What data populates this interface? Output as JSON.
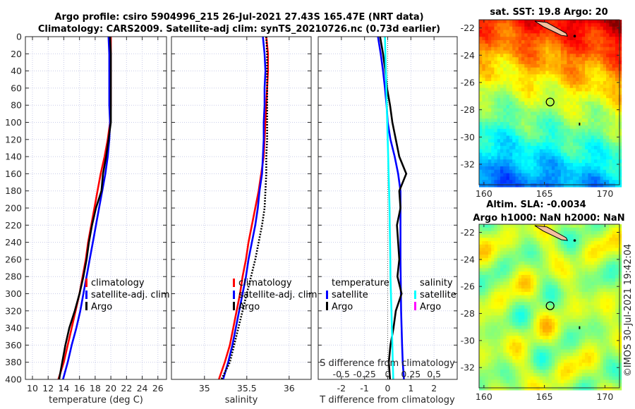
{
  "figure_title": {
    "line1": "Argo profile: csiro 5904996_215 26-Jul-2021 27.43S 165.47E (NRT data)",
    "line2": "Climatology: CARS2009. Satellite-adj clim: synTS_20210726.nc (0.73d earlier)"
  },
  "copyright": "©IMOS 30-Jul-2021 19:42:04",
  "colors": {
    "climatology": "#ff0000",
    "satellite": "#0000ff",
    "argo": "#000000",
    "sal_satellite": "#00ffff",
    "sal_argo": "#ff00ff"
  },
  "chart_data": [
    {
      "type": "line",
      "name": "temperature",
      "xlabel": "temperature (deg C)",
      "ylabel": "",
      "xlim": [
        9.1,
        27.1
      ],
      "ylim": [
        400,
        0
      ],
      "xticks": [
        "10",
        "12",
        "14",
        "16",
        "18",
        "20",
        "22",
        "24",
        "26"
      ],
      "yticks": [
        "0",
        "20",
        "40",
        "60",
        "80",
        "100",
        "120",
        "140",
        "160",
        "180",
        "200",
        "220",
        "240",
        "260",
        "280",
        "300",
        "320",
        "340",
        "360",
        "380",
        "400"
      ],
      "grid": true,
      "legend": [
        "climatology",
        "satellite-adj. clim",
        "Argo"
      ],
      "depth": [
        0,
        20,
        40,
        60,
        80,
        100,
        120,
        140,
        160,
        180,
        200,
        220,
        240,
        260,
        280,
        300,
        320,
        340,
        360,
        380,
        400
      ],
      "series": [
        {
          "name": "climatology",
          "values": [
            20.0,
            20.0,
            20.0,
            20.0,
            20.0,
            19.9,
            19.6,
            19.2,
            18.7,
            18.3,
            17.9,
            17.5,
            17.1,
            16.8,
            16.4,
            16.0,
            15.5,
            15.0,
            14.5,
            14.0,
            13.3
          ]
        },
        {
          "name": "satellite-adj. clim",
          "values": [
            19.7,
            19.8,
            19.8,
            19.8,
            19.8,
            19.9,
            19.8,
            19.6,
            19.3,
            18.9,
            18.5,
            18.1,
            17.7,
            17.3,
            16.9,
            16.5,
            16.1,
            15.6,
            15.0,
            14.5,
            13.9
          ]
        },
        {
          "name": "Argo",
          "values": [
            19.9,
            20.0,
            20.0,
            20.0,
            20.0,
            20.0,
            19.7,
            19.4,
            19.0,
            18.8,
            18.1,
            17.6,
            17.2,
            16.9,
            16.5,
            16.0,
            15.4,
            14.7,
            14.2,
            13.8,
            13.4
          ]
        }
      ]
    },
    {
      "type": "line",
      "name": "salinity",
      "xlabel": "salinity",
      "xlim": [
        34.61,
        36.26
      ],
      "ylim": [
        400,
        0
      ],
      "xticks": [
        "35",
        "35.5",
        "36"
      ],
      "grid": true,
      "legend": [
        "climatology",
        "satellite-adj. clim",
        "Argo"
      ],
      "depth": [
        0,
        20,
        40,
        60,
        80,
        100,
        120,
        140,
        160,
        180,
        200,
        220,
        240,
        260,
        280,
        300,
        320,
        340,
        360,
        380,
        400
      ],
      "series": [
        {
          "name": "climatology",
          "values": [
            35.73,
            35.75,
            35.75,
            35.74,
            35.73,
            35.72,
            35.71,
            35.7,
            35.67,
            35.64,
            35.6,
            35.56,
            35.52,
            35.49,
            35.45,
            35.42,
            35.38,
            35.34,
            35.3,
            35.24,
            35.17
          ]
        },
        {
          "name": "satellite-adj. clim",
          "values": [
            35.69,
            35.71,
            35.72,
            35.71,
            35.71,
            35.7,
            35.7,
            35.69,
            35.68,
            35.65,
            35.63,
            35.6,
            35.56,
            35.52,
            35.49,
            35.45,
            35.41,
            35.37,
            35.33,
            35.28,
            35.22
          ]
        },
        {
          "name": "Argo",
          "values": [
            35.73,
            35.74,
            35.74,
            35.74,
            35.74,
            35.74,
            35.74,
            35.73,
            35.73,
            35.72,
            35.71,
            35.68,
            35.64,
            35.6,
            35.55,
            35.5,
            35.45,
            35.4,
            35.35,
            35.3,
            35.2
          ]
        }
      ]
    },
    {
      "type": "line",
      "name": "difference",
      "xlabel": "T difference from climatology",
      "xlabel_top": "S difference from climatology",
      "xlim": [
        -3,
        3
      ],
      "xticks": [
        "-2",
        "-1",
        "0",
        "1",
        "2"
      ],
      "xticks_s": [
        "-0.5",
        "-0.25",
        "0",
        "0.25",
        "0.5"
      ],
      "grid": true,
      "legend": {
        "temperature_title": "temperature",
        "salinity_title": "salinity",
        "t_sat": "satellite",
        "t_argo": "Argo",
        "s_sat": "satellite",
        "s_argo": "Argo"
      },
      "depth": [
        0,
        20,
        40,
        60,
        80,
        100,
        120,
        140,
        160,
        180,
        200,
        220,
        240,
        260,
        280,
        300,
        320,
        340,
        360,
        380,
        400
      ],
      "series": [
        {
          "name": "T satellite",
          "values": [
            -0.42,
            -0.3,
            -0.2,
            -0.12,
            -0.05,
            0.0,
            0.12,
            0.3,
            0.45,
            0.55,
            0.55,
            0.55,
            0.55,
            0.55,
            0.56,
            0.57,
            0.58,
            0.6,
            0.62,
            0.65,
            0.7
          ]
        },
        {
          "name": "T Argo",
          "values": [
            -0.33,
            -0.2,
            -0.1,
            -0.03,
            0.1,
            0.2,
            0.35,
            0.5,
            0.8,
            0.5,
            0.55,
            0.4,
            0.45,
            0.5,
            0.42,
            0.6,
            0.35,
            0.25,
            0.12,
            0.05,
            0.1
          ]
        },
        {
          "name": "S satellite",
          "values": [
            -0.03,
            -0.025,
            -0.02,
            -0.015,
            -0.01,
            -0.005,
            0.0,
            0.005,
            0.01,
            0.015,
            0.02,
            0.022,
            0.025,
            0.028,
            0.03,
            0.035,
            0.04,
            0.045,
            0.05,
            0.055,
            0.06
          ]
        }
      ]
    },
    {
      "type": "heatmap",
      "name": "sst-map",
      "title": "sat. SST: 19.8 Argo: 20",
      "xticks": [
        "160",
        "165",
        "170"
      ],
      "yticks": [
        "-22",
        "-24",
        "-26",
        "-28",
        "-30",
        "-32"
      ],
      "marker": {
        "lon": 165.47,
        "lat": -27.43
      }
    },
    {
      "type": "heatmap",
      "name": "sla-map",
      "title_line1": "Altim. SLA: -0.0034",
      "title_line2": "Argo h1000: NaN h2000: NaN",
      "xticks": [
        "160",
        "165",
        "170"
      ],
      "yticks": [
        "-22",
        "-24",
        "-26",
        "-28",
        "-30",
        "-32"
      ],
      "marker": {
        "lon": 165.47,
        "lat": -27.43
      }
    }
  ]
}
